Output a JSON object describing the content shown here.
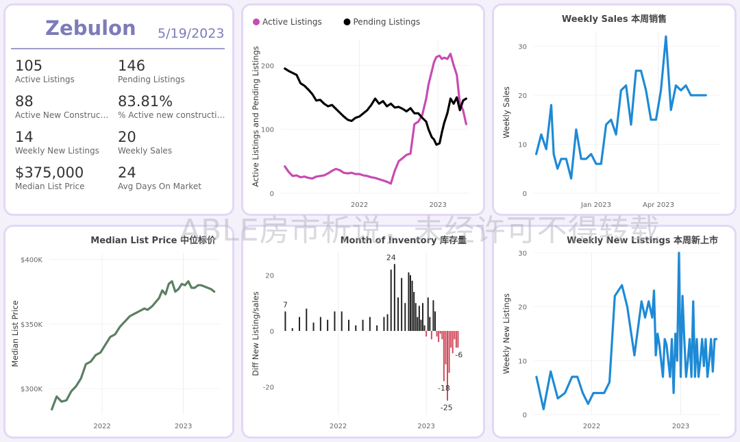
{
  "kpi_card": {
    "city": "Zebulon",
    "date": "5/19/2023",
    "items": [
      {
        "value": "105",
        "label": "Active Listings"
      },
      {
        "value": "146",
        "label": "Pending Listings"
      },
      {
        "value": "88",
        "label": "Active New Constructions"
      },
      {
        "value": "83.81%",
        "label": "% Active new constructions"
      },
      {
        "value": "14",
        "label": "Weekly New Listings"
      },
      {
        "value": "20",
        "label": "Weekly Sales"
      },
      {
        "value": "$375,000",
        "label": "Median List Price"
      },
      {
        "value": "24",
        "label": "Avg Days On Market"
      }
    ]
  },
  "watermark": "ABLE房市析说，未经许可不得转载",
  "colors": {
    "active": "#c74bb0",
    "pending": "#000000",
    "sales": "#1e8ad6",
    "median": "#5b7f63",
    "pos": "#222222",
    "neg": "#d04a5c"
  },
  "chart_data": [
    {
      "id": "listings",
      "type": "line",
      "title": "",
      "ylabel": "Active Listings and Pending Listings",
      "xlabel": "",
      "legend": [
        "Active Listings",
        "Pending Listings"
      ],
      "xlim": [
        2021.0,
        2023.4
      ],
      "ylim": [
        0,
        240
      ],
      "yticks": [
        0,
        100,
        200
      ],
      "xticks": [
        {
          "v": 2022.0,
          "label": "2022"
        },
        {
          "v": 2023.0,
          "label": "2023"
        }
      ],
      "series": [
        {
          "name": "Active Listings",
          "color": "#c74bb0",
          "x": [
            2021.05,
            2021.1,
            2021.15,
            2021.2,
            2021.25,
            2021.3,
            2021.35,
            2021.4,
            2021.45,
            2021.5,
            2021.55,
            2021.6,
            2021.65,
            2021.7,
            2021.75,
            2021.8,
            2021.85,
            2021.9,
            2021.95,
            2022.0,
            2022.05,
            2022.1,
            2022.15,
            2022.2,
            2022.25,
            2022.3,
            2022.35,
            2022.4,
            2022.45,
            2022.5,
            2022.55,
            2022.6,
            2022.65,
            2022.7,
            2022.75,
            2022.8,
            2022.85,
            2022.88,
            2022.92,
            2022.95,
            2022.98,
            2023.02,
            2023.05,
            2023.08,
            2023.12,
            2023.16,
            2023.2,
            2023.24,
            2023.28,
            2023.32,
            2023.36
          ],
          "y": [
            42,
            33,
            27,
            28,
            25,
            26,
            24,
            23,
            26,
            27,
            28,
            31,
            35,
            38,
            36,
            32,
            31,
            32,
            30,
            30,
            28,
            27,
            25,
            24,
            22,
            20,
            18,
            15,
            35,
            50,
            55,
            60,
            62,
            108,
            112,
            122,
            148,
            170,
            190,
            205,
            213,
            215,
            210,
            212,
            210,
            218,
            200,
            185,
            140,
            130,
            108
          ]
        },
        {
          "name": "Pending Listings",
          "color": "#000000",
          "x": [
            2021.05,
            2021.1,
            2021.15,
            2021.2,
            2021.25,
            2021.3,
            2021.35,
            2021.4,
            2021.45,
            2021.5,
            2021.55,
            2021.6,
            2021.65,
            2021.7,
            2021.75,
            2021.8,
            2021.85,
            2021.9,
            2021.95,
            2022.0,
            2022.05,
            2022.1,
            2022.15,
            2022.2,
            2022.25,
            2022.3,
            2022.35,
            2022.4,
            2022.45,
            2022.5,
            2022.55,
            2022.6,
            2022.65,
            2022.7,
            2022.75,
            2022.8,
            2022.85,
            2022.88,
            2022.92,
            2022.95,
            2022.98,
            2023.02,
            2023.05,
            2023.08,
            2023.12,
            2023.16,
            2023.2,
            2023.24,
            2023.28,
            2023.32,
            2023.36
          ],
          "y": [
            195,
            191,
            188,
            185,
            172,
            168,
            162,
            155,
            145,
            146,
            140,
            136,
            138,
            132,
            126,
            120,
            115,
            113,
            118,
            120,
            125,
            130,
            138,
            148,
            140,
            144,
            136,
            140,
            134,
            135,
            132,
            128,
            133,
            125,
            125,
            118,
            112,
            100,
            88,
            84,
            76,
            78,
            95,
            110,
            125,
            148,
            140,
            150,
            130,
            145,
            148
          ]
        }
      ]
    },
    {
      "id": "weekly_sales",
      "type": "line",
      "title": "Weekly Sales 本周销售",
      "ylabel": "Weekly Sales",
      "xlabel": "",
      "xlim": [
        2022.75,
        2023.5
      ],
      "ylim": [
        0,
        33
      ],
      "yticks": [
        0,
        10,
        20,
        30
      ],
      "xticks": [
        {
          "v": 2023.0,
          "label": "Jan 2023"
        },
        {
          "v": 2023.25,
          "label": "Apr 2023"
        }
      ],
      "series": [
        {
          "name": "Weekly Sales",
          "color": "#1e8ad6",
          "x": [
            2022.76,
            2022.78,
            2022.8,
            2022.82,
            2022.83,
            2022.845,
            2022.86,
            2022.88,
            2022.9,
            2022.92,
            2022.94,
            2022.96,
            2022.98,
            2023.0,
            2023.02,
            2023.04,
            2023.06,
            2023.08,
            2023.1,
            2023.12,
            2023.14,
            2023.16,
            2023.18,
            2023.2,
            2023.22,
            2023.24,
            2023.26,
            2023.28,
            2023.3,
            2023.32,
            2023.34,
            2023.36,
            2023.38,
            2023.4,
            2023.42,
            2023.44
          ],
          "y": [
            8,
            12,
            9,
            18,
            8,
            5,
            7,
            7,
            3,
            13,
            7,
            7,
            8,
            6,
            6,
            14,
            15,
            12,
            21,
            22,
            14,
            25,
            25,
            21,
            15,
            15,
            21,
            32,
            17,
            22,
            21,
            22,
            20,
            20,
            20,
            20
          ]
        }
      ]
    },
    {
      "id": "median_price",
      "type": "line",
      "title": "Median List Price  中位标价",
      "ylabel": "Median List Price",
      "xlabel": "",
      "xlim": [
        2021.35,
        2023.45
      ],
      "ylim": [
        280000,
        405000
      ],
      "yticks": [
        {
          "v": 300000,
          "label": "$300K"
        },
        {
          "v": 350000,
          "label": "$350K"
        },
        {
          "v": 400000,
          "label": "$400K"
        }
      ],
      "xticks": [
        {
          "v": 2022.0,
          "label": "2022"
        },
        {
          "v": 2023.0,
          "label": "2023"
        }
      ],
      "series": [
        {
          "name": "Median List Price",
          "color": "#5b7f63",
          "x": [
            2021.38,
            2021.44,
            2021.5,
            2021.56,
            2021.62,
            2021.68,
            2021.74,
            2021.8,
            2021.86,
            2021.92,
            2021.98,
            2022.04,
            2022.1,
            2022.16,
            2022.22,
            2022.28,
            2022.34,
            2022.4,
            2022.46,
            2022.52,
            2022.56,
            2022.62,
            2022.66,
            2022.7,
            2022.74,
            2022.78,
            2022.82,
            2022.86,
            2022.9,
            2022.94,
            2022.98,
            2023.02,
            2023.06,
            2023.1,
            2023.14,
            2023.18,
            2023.22,
            2023.26,
            2023.3,
            2023.34,
            2023.38
          ],
          "y": [
            284000,
            294000,
            290000,
            291000,
            298000,
            302000,
            308000,
            319000,
            321000,
            326000,
            328000,
            334000,
            340000,
            342000,
            348000,
            352000,
            356000,
            358000,
            360000,
            362000,
            361000,
            364000,
            367000,
            370000,
            376000,
            373000,
            381000,
            383000,
            375000,
            377000,
            381000,
            380000,
            383000,
            378000,
            378000,
            380000,
            380000,
            379000,
            378000,
            377000,
            375000
          ]
        }
      ]
    },
    {
      "id": "inventory",
      "type": "bar",
      "title": "Month of Inventory 库存量",
      "ylabel": "Diff New Listing/sales",
      "xlabel": "",
      "xlim": [
        2021.35,
        2023.45
      ],
      "ylim": [
        -30,
        28
      ],
      "yticks": [
        -20,
        0,
        20
      ],
      "xticks": [
        {
          "v": 2022.0,
          "label": "2022"
        },
        {
          "v": 2023.0,
          "label": "2023"
        }
      ],
      "annotations": [
        {
          "x": 2021.4,
          "y": 7,
          "text": "7"
        },
        {
          "x": 2022.6,
          "y": 24,
          "text": "24"
        },
        {
          "x": 2023.2,
          "y": -18,
          "text": "-18"
        },
        {
          "x": 2023.23,
          "y": -25,
          "text": "-25"
        },
        {
          "x": 2023.37,
          "y": -6,
          "text": "-6"
        }
      ],
      "x": [
        2021.4,
        2021.48,
        2021.56,
        2021.64,
        2021.72,
        2021.8,
        2021.88,
        2021.96,
        2022.04,
        2022.12,
        2022.2,
        2022.28,
        2022.36,
        2022.44,
        2022.52,
        2022.56,
        2022.6,
        2022.64,
        2022.68,
        2022.72,
        2022.76,
        2022.8,
        2022.82,
        2022.84,
        2022.86,
        2022.88,
        2022.9,
        2022.92,
        2022.94,
        2022.96,
        2022.98,
        2023.0,
        2023.02,
        2023.04,
        2023.06,
        2023.08,
        2023.1,
        2023.12,
        2023.14,
        2023.16,
        2023.18,
        2023.2,
        2023.22,
        2023.24,
        2023.26,
        2023.28,
        2023.3,
        2023.32,
        2023.34,
        2023.36
      ],
      "values": [
        7,
        1,
        5,
        8,
        3,
        5,
        4,
        7,
        7,
        4,
        2,
        4,
        5,
        2,
        5,
        6,
        22,
        24,
        12,
        19,
        10,
        21,
        20,
        18,
        14,
        10,
        5,
        9,
        4,
        10,
        2,
        -2,
        12,
        5,
        -3,
        11,
        7,
        -2,
        -4,
        -1,
        -3,
        -18,
        -12,
        -25,
        -15,
        -6,
        -8,
        -3,
        -6,
        -6
      ]
    },
    {
      "id": "weekly_new_listings",
      "type": "line",
      "title": "Weekly New Listings  本周新上市",
      "ylabel": "Weekly New Listings",
      "xlabel": "",
      "xlim": [
        2021.35,
        2023.45
      ],
      "ylim": [
        0,
        30
      ],
      "yticks": [
        0,
        10,
        20,
        30
      ],
      "xticks": [
        {
          "v": 2022.0,
          "label": "2022"
        },
        {
          "v": 2023.0,
          "label": "2023"
        }
      ],
      "series": [
        {
          "name": "Weekly New Listings",
          "color": "#1e8ad6",
          "x": [
            2021.38,
            2021.46,
            2021.54,
            2021.62,
            2021.7,
            2021.78,
            2021.84,
            2021.9,
            2021.96,
            2022.02,
            2022.08,
            2022.14,
            2022.2,
            2022.26,
            2022.34,
            2022.4,
            2022.48,
            2022.56,
            2022.6,
            2022.64,
            2022.68,
            2022.7,
            2022.72,
            2022.74,
            2022.76,
            2022.8,
            2022.82,
            2022.84,
            2022.86,
            2022.88,
            2022.9,
            2022.92,
            2022.94,
            2022.96,
            2022.98,
            2023.0,
            2023.02,
            2023.04,
            2023.06,
            2023.08,
            2023.1,
            2023.12,
            2023.14,
            2023.16,
            2023.18,
            2023.2,
            2023.22,
            2023.24,
            2023.26,
            2023.28,
            2023.3,
            2023.32,
            2023.34,
            2023.36,
            2023.38,
            2023.4
          ],
          "y": [
            7,
            1,
            8,
            3,
            4,
            7,
            7,
            4,
            2,
            4,
            4,
            4,
            6,
            22,
            24,
            20,
            11,
            21,
            18,
            21,
            18,
            23,
            11,
            15,
            13,
            7,
            14,
            13,
            10,
            7,
            14,
            4,
            15,
            10,
            30,
            7,
            22,
            14,
            7,
            10,
            14,
            7,
            21,
            7,
            14,
            7,
            10,
            14,
            9,
            14,
            7,
            10,
            14,
            8,
            14,
            14
          ]
        }
      ]
    }
  ]
}
